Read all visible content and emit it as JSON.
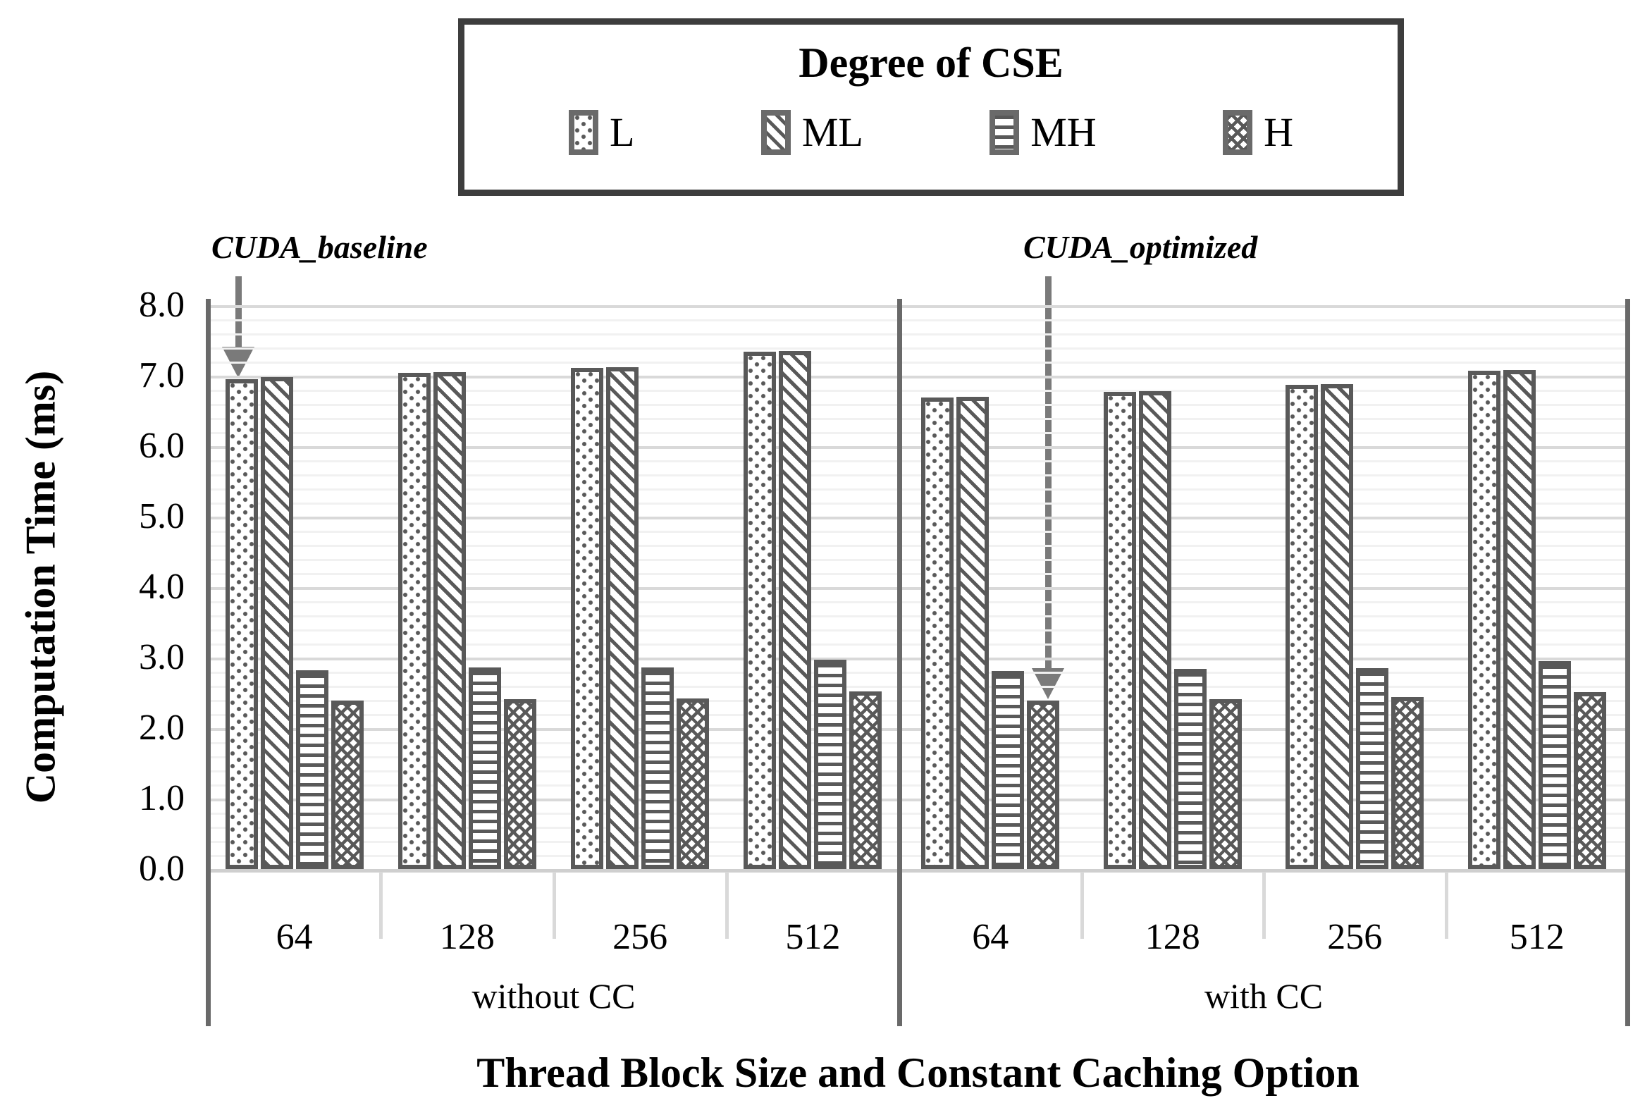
{
  "figure": {
    "legend": {
      "title": "Degree of CSE",
      "items": [
        {
          "label": "L",
          "pattern": "dots",
          "swatch_icon": "dotted-fill-icon"
        },
        {
          "label": "ML",
          "pattern": "diag",
          "swatch_icon": "diagonal-hatch-icon"
        },
        {
          "label": "MH",
          "pattern": "hlines",
          "swatch_icon": "horizontal-lines-icon"
        },
        {
          "label": "H",
          "pattern": "check",
          "swatch_icon": "checker-hatch-icon"
        }
      ]
    },
    "y_axis": {
      "title": "Computation Time (ms)",
      "min": 0,
      "max": 8,
      "major_step": 1.0,
      "minor_step": 0.2,
      "tick_labels": [
        "0.0",
        "1.0",
        "2.0",
        "3.0",
        "4.0",
        "5.0",
        "6.0",
        "7.0",
        "8.0"
      ]
    },
    "x_axis": {
      "title": "Thread Block Size and Constant Caching Option",
      "group_labels": [
        "64",
        "128",
        "256",
        "512"
      ],
      "panel_labels": [
        "without CC",
        "with CC"
      ]
    },
    "annotations": [
      {
        "text": "CUDA_baseline",
        "points_to": "L bar of 64 without CC"
      },
      {
        "text": "CUDA_optimized",
        "points_to": "H bar of 64 with CC"
      }
    ]
  },
  "chart_data": {
    "type": "bar",
    "title": "Degree of CSE",
    "xlabel": "Thread Block Size and Constant Caching Option",
    "ylabel": "Computation Time (ms)",
    "ylim": [
      0,
      8
    ],
    "grid": {
      "major": 1.0,
      "minor": 0.2
    },
    "legend_position": "top",
    "panels": [
      {
        "label": "without CC",
        "categories": [
          "64",
          "128",
          "256",
          "512"
        ],
        "series": [
          {
            "name": "L",
            "values": [
              6.95,
              7.04,
              7.11,
              7.34
            ]
          },
          {
            "name": "ML",
            "values": [
              6.98,
              7.05,
              7.12,
              7.35
            ]
          },
          {
            "name": "MH",
            "values": [
              2.82,
              2.86,
              2.86,
              2.97
            ]
          },
          {
            "name": "H",
            "values": [
              2.39,
              2.41,
              2.42,
              2.52
            ]
          }
        ]
      },
      {
        "label": "with CC",
        "categories": [
          "64",
          "128",
          "256",
          "512"
        ],
        "series": [
          {
            "name": "L",
            "values": [
              6.69,
              6.77,
              6.87,
              7.07
            ]
          },
          {
            "name": "ML",
            "values": [
              6.7,
              6.78,
              6.88,
              7.08
            ]
          },
          {
            "name": "MH",
            "values": [
              2.81,
              2.84,
              2.85,
              2.95
            ]
          },
          {
            "name": "H",
            "values": [
              2.39,
              2.41,
              2.44,
              2.51
            ]
          }
        ]
      }
    ]
  },
  "colors": {
    "bar_border": "#595959",
    "pattern": "#595959",
    "grid_major": "#d9d9d9",
    "grid_minor": "#f1f1f1",
    "axis_line": "#696969",
    "arrow": "#7a7a7a",
    "legend_border": "#3d3d3d",
    "text": "#000000"
  }
}
